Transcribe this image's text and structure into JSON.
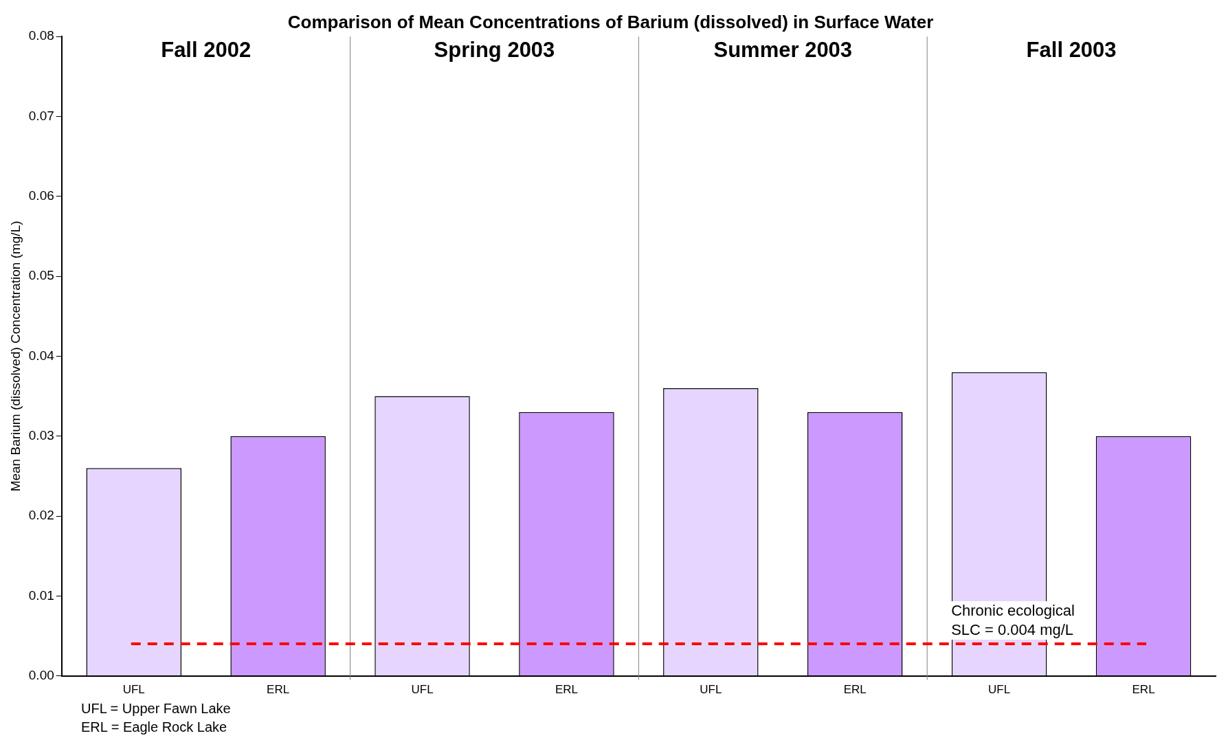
{
  "chart_data": {
    "type": "bar",
    "title": "Comparison of Mean Concentrations of Barium (dissolved) in Surface Water",
    "ylabel": "Mean Barium (dissolved) Concentration (mg/L)",
    "categories": [
      "UFL",
      "ERL",
      "UFL",
      "ERL",
      "UFL",
      "ERL",
      "UFL",
      "ERL"
    ],
    "values": [
      0.026,
      0.03,
      0.035,
      0.033,
      0.036,
      0.033,
      0.038,
      0.03
    ],
    "colors": [
      "#e6d6ff",
      "#cc99ff",
      "#e6d6ff",
      "#cc99ff",
      "#e6d6ff",
      "#cc99ff",
      "#e6d6ff",
      "#cc99ff"
    ],
    "ylim": [
      0,
      0.08
    ],
    "yticks": [
      {
        "value": 0,
        "label": "0.00"
      },
      {
        "value": 0.01,
        "label": "0.01"
      },
      {
        "value": 0.02,
        "label": "0.02"
      },
      {
        "value": 0.03,
        "label": "0.03"
      },
      {
        "value": 0.04,
        "label": "0.04"
      },
      {
        "value": 0.05,
        "label": "0.05"
      },
      {
        "value": 0.06,
        "label": "0.06"
      },
      {
        "value": 0.07,
        "label": "0.07"
      },
      {
        "value": 0.08,
        "label": "0.08"
      }
    ],
    "ref_lines": [
      {
        "axis": "y",
        "value": 0.004,
        "label": "Chronic ecological SLC = 0.004 mg/L",
        "color": "#ff0000",
        "line_style": "dashed"
      }
    ],
    "annotations": [
      "Fall 2002",
      "Spring 2003",
      "Summer 2003",
      "Fall 2003",
      "UFL = Upper Fawn Lake",
      "ERL = Eagle Rock Lake"
    ],
    "grid": false,
    "legend": false
  }
}
